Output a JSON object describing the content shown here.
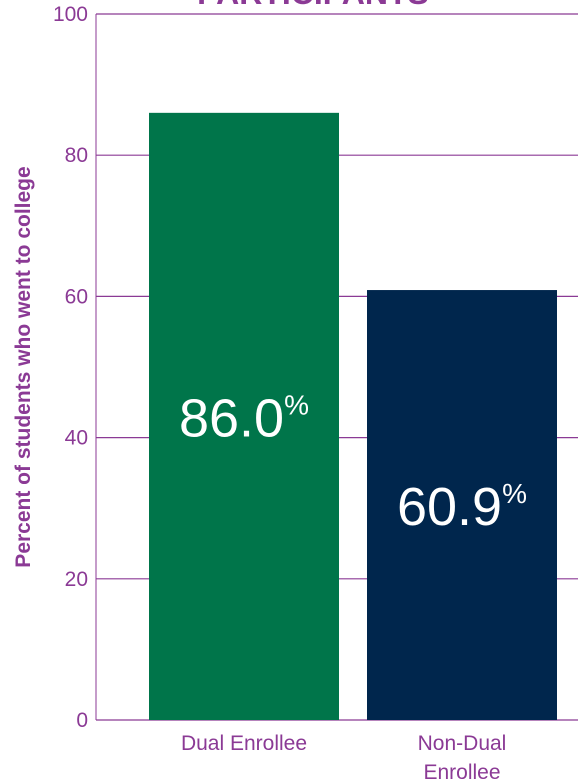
{
  "chart_data": {
    "type": "bar",
    "title": "PARTICIPANTS",
    "ylabel": "Percent of students who went to college",
    "xlabel": "",
    "ylim": [
      0,
      100
    ],
    "yticks": [
      0,
      20,
      40,
      60,
      80,
      100
    ],
    "grid": true,
    "categories": [
      {
        "label_lines": [
          "Dual Enrollee"
        ]
      },
      {
        "label_lines": [
          "Non-Dual",
          "Enrollee"
        ]
      }
    ],
    "values": [
      86.0,
      60.9
    ],
    "value_labels": [
      "86.0",
      "60.9"
    ],
    "value_unit": "%",
    "colors": {
      "bars": [
        "#00754A",
        "#00264D"
      ],
      "text": "#8B3A95",
      "grid": "#8B3A95",
      "value_text": "#ffffff"
    }
  }
}
